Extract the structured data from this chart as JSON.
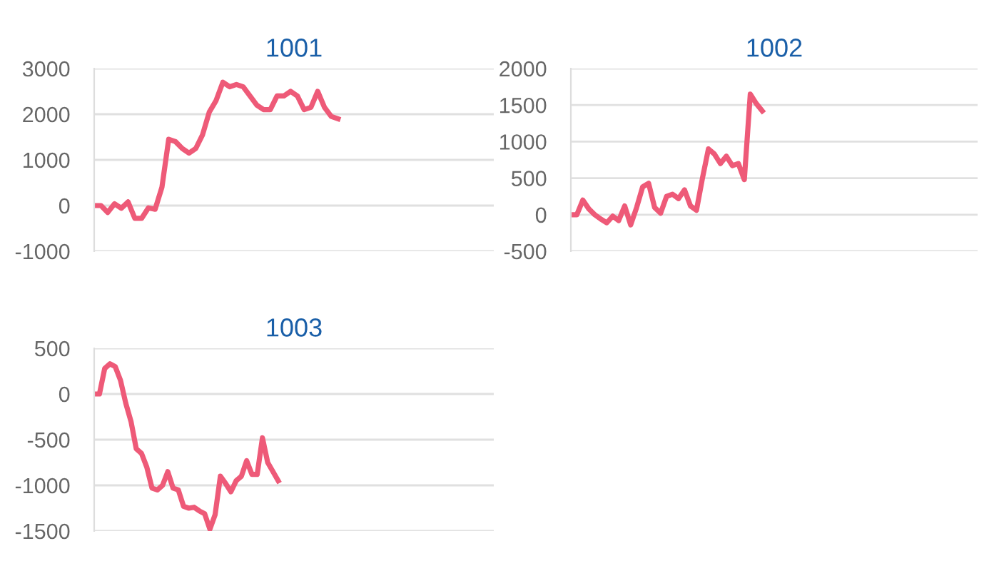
{
  "chart_data": [
    {
      "type": "line",
      "title": "1001",
      "categories": [
        null,
        null,
        null,
        null,
        null,
        null,
        null,
        null,
        null,
        null,
        null,
        null,
        null,
        null,
        null,
        null,
        null,
        null,
        null,
        null,
        null,
        null,
        null,
        null,
        null,
        null,
        null,
        null,
        null,
        null,
        null,
        null,
        null,
        null,
        null,
        null,
        null,
        null,
        null,
        null,
        null,
        null,
        null,
        null,
        null,
        null,
        null,
        null,
        null,
        null,
        null,
        null,
        null,
        null,
        null,
        null,
        null,
        null,
        null,
        null
      ],
      "series": [
        {
          "color": "#ee5a78",
          "values": [
            0,
            0,
            -150,
            40,
            -60,
            80,
            -280,
            -280,
            -50,
            -80,
            400,
            1450,
            1400,
            1250,
            1150,
            1250,
            1550,
            2050,
            2300,
            2700,
            2600,
            2650,
            2600,
            2400,
            2200,
            2100,
            2100,
            2400,
            2400,
            2500,
            2400,
            2100,
            2150,
            2500,
            2150,
            1950,
            1900,
            null,
            null,
            null,
            null,
            null,
            null,
            null,
            null,
            null,
            null,
            null,
            null,
            null,
            null,
            null,
            null,
            null,
            null,
            null,
            null,
            null,
            null,
            null
          ]
        }
      ],
      "ylim": [
        -1000,
        3000
      ],
      "yticks": [
        -1000,
        0,
        1000,
        2000,
        3000
      ],
      "grid": "y",
      "marker": "none",
      "line_style": "solid"
    },
    {
      "type": "line",
      "title": "1002",
      "categories": [
        null,
        null,
        null,
        null,
        null,
        null,
        null,
        null,
        null,
        null,
        null,
        null,
        null,
        null,
        null,
        null,
        null,
        null,
        null,
        null,
        null,
        null,
        null,
        null,
        null,
        null,
        null,
        null,
        null,
        null,
        null,
        null,
        null,
        null,
        null,
        null,
        null,
        null,
        null,
        null,
        null,
        null,
        null,
        null,
        null,
        null,
        null,
        null,
        null,
        null,
        null,
        null,
        null,
        null,
        null,
        null,
        null,
        null,
        null,
        null,
        null,
        null,
        null,
        null,
        null,
        null,
        null,
        null,
        null
      ],
      "series": [
        {
          "color": "#ee5a78",
          "values": [
            0,
            0,
            200,
            80,
            0,
            -60,
            -110,
            -20,
            -80,
            120,
            -140,
            100,
            380,
            430,
            100,
            20,
            250,
            280,
            220,
            340,
            120,
            60,
            500,
            900,
            830,
            700,
            800,
            670,
            700,
            480,
            1650,
            1520,
            1420,
            null,
            null,
            null,
            null,
            null,
            null,
            null,
            null,
            null,
            null,
            null,
            null,
            null,
            null,
            null,
            null,
            null,
            null,
            null,
            null,
            null,
            null,
            null,
            null,
            null,
            null,
            null,
            null,
            null,
            null,
            null,
            null,
            null,
            null,
            null,
            null
          ]
        }
      ],
      "ylim": [
        -500,
        2000
      ],
      "yticks": [
        -500,
        0,
        500,
        1000,
        1500,
        2000
      ],
      "grid": "y",
      "marker": "none",
      "line_style": "solid"
    },
    {
      "type": "line",
      "title": "1003",
      "categories": [
        null,
        null,
        null,
        null,
        null,
        null,
        null,
        null,
        null,
        null,
        null,
        null,
        null,
        null,
        null,
        null,
        null,
        null,
        null,
        null,
        null,
        null,
        null,
        null,
        null,
        null,
        null,
        null,
        null,
        null,
        null,
        null,
        null,
        null,
        null,
        null,
        null,
        null,
        null,
        null,
        null,
        null,
        null,
        null,
        null,
        null,
        null,
        null,
        null,
        null,
        null,
        null,
        null,
        null,
        null,
        null,
        null,
        null,
        null,
        null,
        null,
        null,
        null,
        null,
        null,
        null,
        null,
        null,
        null,
        null,
        null,
        null,
        null,
        null,
        null,
        null,
        null
      ],
      "series": [
        {
          "color": "#ee5a78",
          "values": [
            0,
            0,
            280,
            330,
            300,
            150,
            -100,
            -300,
            -600,
            -650,
            -800,
            -1030,
            -1050,
            -1000,
            -850,
            -1030,
            -1050,
            -1230,
            -1250,
            -1240,
            -1280,
            -1310,
            -1480,
            -1320,
            -900,
            -980,
            -1070,
            -950,
            -900,
            -730,
            -880,
            -880,
            -480,
            -750,
            -850,
            -950,
            null,
            null,
            null,
            null,
            null,
            null,
            null,
            null,
            null,
            null,
            null,
            null,
            null,
            null,
            null,
            null,
            null,
            null,
            null,
            null,
            null,
            null,
            null,
            null,
            null,
            null,
            null,
            null,
            null,
            null,
            null,
            null,
            null,
            null,
            null,
            null,
            null,
            null,
            null,
            null,
            null
          ]
        }
      ],
      "ylim": [
        -1500,
        500
      ],
      "yticks": [
        -1500,
        -1000,
        -500,
        0,
        500
      ],
      "grid": "y",
      "marker": "none",
      "line_style": "solid"
    }
  ]
}
